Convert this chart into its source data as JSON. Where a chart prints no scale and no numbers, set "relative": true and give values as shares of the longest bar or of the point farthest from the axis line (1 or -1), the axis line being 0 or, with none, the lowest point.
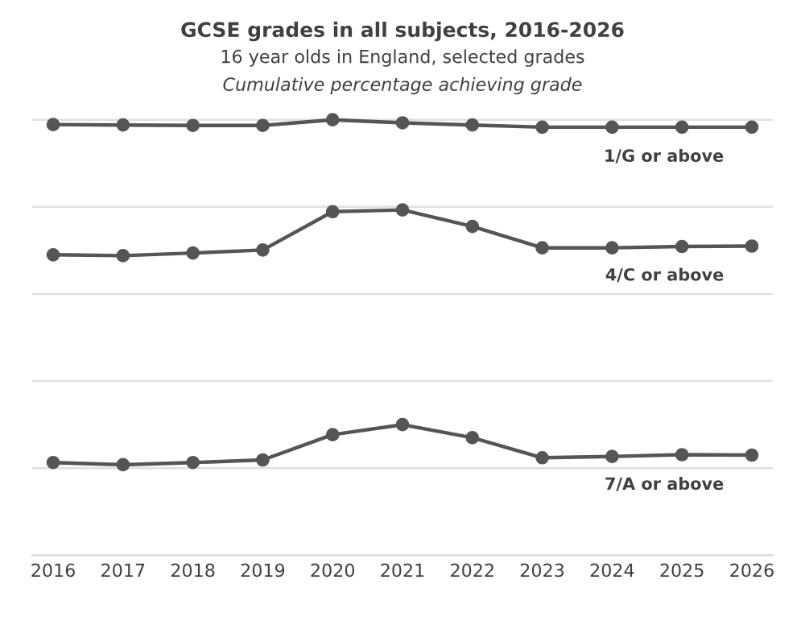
{
  "chart_data": {
    "type": "line",
    "title": "GCSE grades in all subjects, 2016-2026",
    "subtitle": "16 year olds in England, selected grades",
    "annotations": [
      "Cumulative percentage achieving grade"
    ],
    "categories": [
      "2016",
      "2017",
      "2018",
      "2019",
      "2020",
      "2021",
      "2022",
      "2023",
      "2024",
      "2025",
      "2026"
    ],
    "relative": true,
    "grid": "y",
    "marker": "circle",
    "line_style": "solid",
    "legend": false,
    "series": [
      {
        "name": "1/G or above",
        "color": "#555555",
        "values": [
          0.989,
          0.988,
          0.987,
          0.987,
          1.0,
          0.993,
          0.988,
          0.983,
          0.983,
          0.983,
          0.983
        ]
      },
      {
        "name": "4/C or above",
        "color": "#555555",
        "values": [
          0.69,
          0.688,
          0.694,
          0.701,
          0.789,
          0.793,
          0.755,
          0.706,
          0.706,
          0.709,
          0.71
        ]
      },
      {
        "name": "7/A or above",
        "color": "#555555",
        "values": [
          0.213,
          0.208,
          0.213,
          0.219,
          0.277,
          0.3,
          0.27,
          0.224,
          0.227,
          0.231,
          0.23
        ]
      }
    ]
  }
}
